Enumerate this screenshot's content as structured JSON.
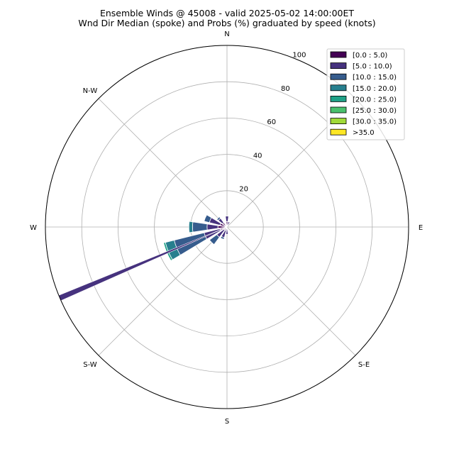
{
  "chart_data": {
    "type": "windrose",
    "title": "Ensemble Winds @ 45008 - valid 2025-05-02 14:00:00ET",
    "subtitle": "Wnd Dir Median (spoke) and Probs (%) graduated by speed (knots)",
    "direction_labels": [
      "N",
      "N-W",
      "W",
      "S-W",
      "S",
      "S-E",
      "E"
    ],
    "radial_ticks": [
      "20",
      "40",
      "60",
      "80",
      "100"
    ],
    "rlim": [
      0,
      100
    ],
    "grid": true,
    "legend_position": "top-right",
    "legend": [
      {
        "label": "[0.0 : 5.0)",
        "color": "#440154"
      },
      {
        "label": "[5.0 : 10.0)",
        "color": "#46327e"
      },
      {
        "label": "[10.0 : 15.0)",
        "color": "#365c8d"
      },
      {
        "label": "[15.0 : 20.0)",
        "color": "#277f8e"
      },
      {
        "label": "[20.0 : 25.0)",
        "color": "#1fa187"
      },
      {
        "label": "[25.0 : 30.0)",
        "color": "#4ac16d"
      },
      {
        "label": "[30.0 : 35.0)",
        "color": "#a0da39"
      },
      {
        "label": ">35.0",
        "color": "#fde725"
      }
    ],
    "median_spoke": {
      "direction_deg": 247,
      "magnitude": 100,
      "color": "#46327e"
    },
    "sectors": [
      {
        "direction_deg": 0,
        "stacks": [
          3,
          3
        ]
      },
      {
        "direction_deg": 22.5,
        "stacks": [
          1,
          2
        ]
      },
      {
        "direction_deg": 292.5,
        "stacks": [
          4,
          6,
          3
        ]
      },
      {
        "direction_deg": 315,
        "stacks": [
          3,
          3,
          1
        ]
      },
      {
        "direction_deg": 270,
        "stacks": [
          5,
          6,
          8,
          2
        ]
      },
      {
        "direction_deg": 247.5,
        "stacks": [
          4,
          9,
          17,
          5,
          1
        ]
      },
      {
        "direction_deg": 225,
        "stacks": [
          2,
          5,
          5
        ]
      },
      {
        "direction_deg": 202.5,
        "stacks": [
          2,
          4,
          1
        ]
      },
      {
        "direction_deg": 180,
        "stacks": [
          1,
          3
        ]
      }
    ]
  }
}
